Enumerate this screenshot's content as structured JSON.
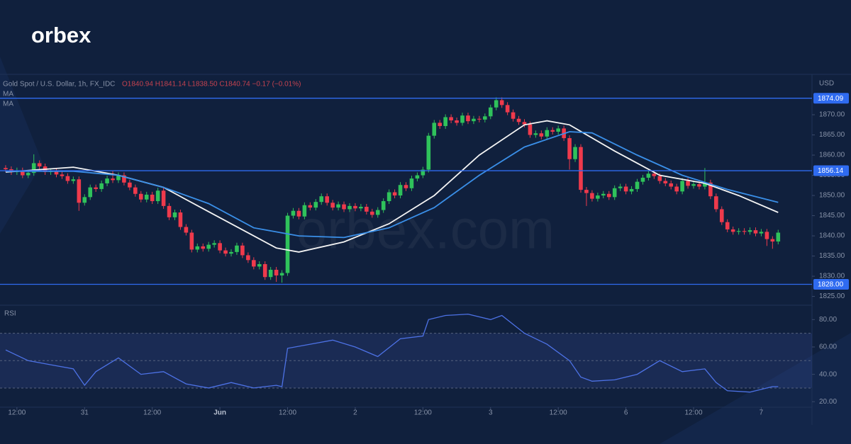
{
  "logo": "orbex",
  "watermark": "orbex.com",
  "chart_data": [
    {
      "type": "candlestick",
      "title": "Gold Spot / U.S. Dollar, 1h, FX_IDC",
      "ohlc_label": "O1840.94 H1841.14 L1838.50 C1840.74 −0.17 (−0.01%)",
      "currency": "USD",
      "open": [
        1856.8,
        1856.5,
        1855.8,
        1856.2,
        1855.0,
        1855.6,
        1858.0,
        1857.2,
        1855.8,
        1856.0,
        1855.2,
        1854.8,
        1853.6,
        1854.0,
        1848.2,
        1849.6,
        1852.0,
        1851.6,
        1853.0,
        1854.2,
        1853.8,
        1855.0,
        1853.2,
        1852.0,
        1850.4,
        1849.0,
        1850.2,
        1848.6,
        1851.2,
        1847.4,
        1844.6,
        1845.8,
        1842.2,
        1840.8,
        1836.6,
        1837.4,
        1836.8,
        1837.8,
        1838.2,
        1836.4,
        1835.6,
        1836.0,
        1837.6,
        1835.2,
        1834.0,
        1832.4,
        1833.0,
        1829.8,
        1831.6,
        1830.2,
        1830.8,
        1845.0,
        1846.2,
        1844.8,
        1847.6,
        1847.0,
        1848.4,
        1849.8,
        1848.2,
        1847.0,
        1847.8,
        1846.6,
        1847.4,
        1846.8,
        1847.2,
        1846.0,
        1845.2,
        1846.4,
        1848.6,
        1850.8,
        1850.0,
        1852.6,
        1851.8,
        1854.2,
        1855.0,
        1856.4,
        1864.8,
        1868.0,
        1867.2,
        1869.4,
        1868.6,
        1868.0,
        1869.8,
        1868.4,
        1869.0,
        1868.8,
        1869.6,
        1871.8,
        1873.6,
        1872.4,
        1870.6,
        1869.0,
        1868.2,
        1867.6,
        1865.0,
        1865.4,
        1864.6,
        1866.2,
        1865.8,
        1866.6,
        1864.2,
        1859.0,
        1862.0,
        1851.4,
        1850.6,
        1849.2,
        1850.0,
        1850.4,
        1849.6,
        1851.8,
        1852.2,
        1851.0,
        1851.6,
        1853.4,
        1854.4,
        1855.4,
        1854.8,
        1853.6,
        1853.0,
        1852.2,
        1851.0,
        1853.6,
        1852.4,
        1852.8,
        1852.2,
        1853.2,
        1849.8,
        1846.6,
        1843.4,
        1841.6,
        1841.0,
        1841.2,
        1841.0,
        1841.4,
        1840.6,
        1841.0,
        1839.2,
        1838.6
      ],
      "high": [
        1857.5,
        1857.2,
        1856.9,
        1856.9,
        1856.3,
        1860.2,
        1858.7,
        1857.9,
        1856.7,
        1856.7,
        1855.9,
        1855.5,
        1854.7,
        1854.7,
        1850.3,
        1852.7,
        1852.7,
        1853.7,
        1854.9,
        1856.0,
        1855.7,
        1855.7,
        1853.9,
        1852.7,
        1851.1,
        1850.9,
        1850.9,
        1851.9,
        1851.9,
        1848.1,
        1846.5,
        1846.5,
        1842.9,
        1841.5,
        1838.1,
        1838.1,
        1838.5,
        1838.9,
        1838.9,
        1837.1,
        1836.7,
        1838.3,
        1838.3,
        1835.9,
        1834.7,
        1833.7,
        1833.7,
        1832.3,
        1832.3,
        1831.5,
        1845.7,
        1846.9,
        1846.9,
        1848.3,
        1848.3,
        1849.1,
        1850.5,
        1850.5,
        1848.9,
        1848.5,
        1848.5,
        1848.1,
        1848.1,
        1847.9,
        1847.9,
        1846.7,
        1847.1,
        1849.3,
        1851.5,
        1851.5,
        1853.3,
        1853.3,
        1854.9,
        1855.7,
        1857.1,
        1865.5,
        1868.7,
        1868.7,
        1870.1,
        1870.1,
        1869.3,
        1870.5,
        1870.5,
        1869.7,
        1869.7,
        1870.3,
        1872.5,
        1874.3,
        1874.3,
        1873.1,
        1871.3,
        1869.7,
        1868.9,
        1868.3,
        1866.1,
        1866.1,
        1866.9,
        1866.9,
        1867.3,
        1867.3,
        1864.9,
        1862.7,
        1862.7,
        1852.1,
        1851.3,
        1850.7,
        1851.1,
        1851.1,
        1852.5,
        1852.9,
        1852.9,
        1852.3,
        1854.1,
        1855.1,
        1856.1,
        1856.1,
        1855.5,
        1854.3,
        1853.7,
        1852.9,
        1854.3,
        1854.3,
        1853.5,
        1853.5,
        1856.8,
        1853.9,
        1850.5,
        1847.3,
        1844.1,
        1842.3,
        1841.9,
        1841.9,
        1842.1,
        1842.1,
        1841.7,
        1841.7,
        1839.9,
        1841.5
      ],
      "low": [
        1855.8,
        1855.1,
        1855.1,
        1854.3,
        1854.3,
        1854.9,
        1856.5,
        1855.1,
        1855.1,
        1854.5,
        1854.1,
        1852.9,
        1852.9,
        1846.2,
        1847.5,
        1848.9,
        1850.9,
        1850.9,
        1852.3,
        1853.1,
        1853.1,
        1852.5,
        1851.3,
        1849.7,
        1848.3,
        1848.3,
        1847.9,
        1847.9,
        1846.7,
        1843.9,
        1843.9,
        1841.5,
        1840.1,
        1835.9,
        1835.9,
        1836.1,
        1836.1,
        1837.1,
        1835.7,
        1834.9,
        1834.9,
        1835.3,
        1834.5,
        1833.3,
        1831.7,
        1831.7,
        1829.1,
        1829.1,
        1828.6,
        1828.4,
        1830.1,
        1844.3,
        1844.1,
        1844.1,
        1846.3,
        1846.3,
        1847.7,
        1847.5,
        1846.3,
        1846.3,
        1845.9,
        1845.9,
        1846.1,
        1846.1,
        1845.3,
        1844.5,
        1844.5,
        1845.7,
        1847.9,
        1849.3,
        1849.3,
        1851.1,
        1851.1,
        1853.5,
        1854.3,
        1855.7,
        1864.1,
        1866.5,
        1866.5,
        1867.9,
        1867.3,
        1867.3,
        1867.7,
        1867.7,
        1868.1,
        1868.1,
        1868.9,
        1871.1,
        1871.7,
        1869.9,
        1868.3,
        1867.5,
        1866.9,
        1864.3,
        1864.3,
        1863.9,
        1863.9,
        1865.1,
        1865.1,
        1863.5,
        1856.4,
        1858.3,
        1850.7,
        1847.4,
        1848.5,
        1848.5,
        1849.3,
        1848.9,
        1848.9,
        1851.1,
        1850.3,
        1850.3,
        1850.9,
        1852.7,
        1853.7,
        1854.1,
        1852.9,
        1852.3,
        1851.5,
        1850.3,
        1850.3,
        1851.7,
        1851.7,
        1851.5,
        1851.5,
        1849.1,
        1845.9,
        1842.7,
        1840.9,
        1840.3,
        1840.3,
        1840.3,
        1840.3,
        1839.9,
        1839.9,
        1837.5,
        1836.8,
        1837.9
      ],
      "close": [
        1856.5,
        1855.8,
        1856.2,
        1855.0,
        1855.6,
        1858.0,
        1857.2,
        1855.8,
        1856.0,
        1855.2,
        1854.8,
        1853.6,
        1854.0,
        1848.2,
        1849.6,
        1852.0,
        1851.6,
        1853.0,
        1854.2,
        1853.8,
        1855.0,
        1853.2,
        1852.0,
        1850.4,
        1849.0,
        1850.2,
        1848.6,
        1851.2,
        1847.4,
        1844.6,
        1845.8,
        1842.2,
        1840.8,
        1836.6,
        1837.4,
        1836.8,
        1837.8,
        1838.2,
        1836.4,
        1835.6,
        1836.0,
        1837.6,
        1835.2,
        1834.0,
        1832.4,
        1833.0,
        1829.8,
        1831.6,
        1830.2,
        1830.8,
        1845.0,
        1846.2,
        1844.8,
        1847.6,
        1847.0,
        1848.4,
        1849.8,
        1848.2,
        1847.0,
        1847.8,
        1846.6,
        1847.4,
        1846.8,
        1847.2,
        1846.0,
        1845.2,
        1846.4,
        1848.6,
        1850.8,
        1850.0,
        1852.6,
        1851.8,
        1854.2,
        1855.0,
        1856.4,
        1864.8,
        1868.0,
        1867.2,
        1869.4,
        1868.6,
        1868.0,
        1869.8,
        1868.4,
        1869.0,
        1868.8,
        1869.6,
        1871.8,
        1873.6,
        1872.4,
        1870.6,
        1869.0,
        1868.2,
        1867.6,
        1865.0,
        1865.4,
        1864.6,
        1866.2,
        1865.8,
        1866.6,
        1864.2,
        1859.0,
        1862.0,
        1851.4,
        1850.6,
        1849.2,
        1850.0,
        1850.4,
        1849.6,
        1851.8,
        1852.2,
        1851.0,
        1851.6,
        1853.4,
        1854.4,
        1855.4,
        1854.8,
        1853.6,
        1853.0,
        1852.2,
        1851.0,
        1853.6,
        1852.4,
        1852.8,
        1852.2,
        1853.2,
        1849.8,
        1846.6,
        1843.4,
        1841.6,
        1841.0,
        1841.2,
        1841.0,
        1841.4,
        1840.6,
        1841.0,
        1839.2,
        1838.6,
        1840.8
      ],
      "up_color": "#2fc25b",
      "down_color": "#ef3a4c",
      "series": [
        {
          "name": "MA",
          "color": "#f4f4f4",
          "x": [
            0,
            12,
            20,
            28,
            36,
            44,
            48,
            52,
            60,
            68,
            76,
            84,
            92,
            96,
            100,
            108,
            116,
            124,
            130,
            137
          ],
          "values": [
            1855.8,
            1857,
            1855,
            1852,
            1846,
            1840,
            1837,
            1836,
            1838.5,
            1843,
            1850,
            1860,
            1867.5,
            1868.5,
            1867.5,
            1861,
            1855,
            1853,
            1850,
            1845.8
          ]
        },
        {
          "name": "MA",
          "color": "#3a8fe8",
          "x": [
            0,
            12,
            20,
            28,
            36,
            44,
            52,
            60,
            68,
            76,
            84,
            92,
            100,
            104,
            112,
            120,
            128,
            137
          ],
          "values": [
            1856,
            1856,
            1855,
            1852,
            1848,
            1842,
            1840,
            1839.6,
            1842,
            1847,
            1855,
            1862,
            1865.8,
            1865.5,
            1860,
            1855,
            1851.5,
            1848.3
          ]
        }
      ],
      "levels": [
        1874.09,
        1856.14,
        {
          "value": 1828,
          "label": "1828.00"
        }
      ],
      "level_color": "#2f6bf0",
      "xlim": [
        -1,
        143
      ],
      "ylim": [
        1823,
        1880
      ],
      "yticks": [
        {
          "value": 1825,
          "label": "1825.00"
        },
        {
          "value": 1830,
          "label": "1830.00"
        },
        {
          "value": 1835,
          "label": "1835.00"
        },
        {
          "value": 1840,
          "label": "1840.00"
        },
        {
          "value": 1845,
          "label": "1845.00"
        },
        {
          "value": 1850,
          "label": "1850.00"
        },
        {
          "value": 1855,
          "label": "1855.00"
        },
        {
          "value": 1860,
          "label": "1860.00"
        },
        {
          "value": 1865,
          "label": "1865.00"
        },
        {
          "value": 1870,
          "label": "1870.00"
        }
      ]
    },
    {
      "type": "line",
      "title": "RSI",
      "color": "#4d72e6",
      "x": [
        0,
        4,
        8,
        12,
        14,
        16,
        20,
        24,
        28,
        32,
        36,
        40,
        44,
        48,
        49,
        50,
        54,
        58,
        62,
        66,
        70,
        74,
        75,
        78,
        82,
        86,
        88,
        92,
        96,
        100,
        102,
        104,
        108,
        112,
        116,
        120,
        124,
        126,
        128,
        132,
        136,
        137
      ],
      "values": [
        57.8,
        50,
        47,
        44,
        32,
        42,
        52,
        40,
        42,
        33,
        30,
        34,
        30,
        32,
        31,
        59,
        62,
        65,
        60,
        53,
        66,
        68,
        80,
        83,
        84,
        80,
        83,
        70,
        62,
        50,
        38,
        35,
        36,
        40,
        50,
        42,
        44,
        34,
        28,
        27,
        31,
        31
      ],
      "band": [
        30,
        70
      ],
      "midline": 50,
      "xlim": [
        -1,
        143
      ],
      "ylim": [
        16,
        90
      ],
      "yticks": [
        {
          "value": 20,
          "label": "20.00"
        },
        {
          "value": 40,
          "label": "40.00"
        },
        {
          "value": 60,
          "label": "60.00"
        },
        {
          "value": 80,
          "label": "80.00"
        }
      ],
      "xticks": [
        {
          "value": 2,
          "label": "12:00"
        },
        {
          "value": 14,
          "label": "31"
        },
        {
          "value": 26,
          "label": "12:00"
        },
        {
          "value": 38,
          "label": "Jun"
        },
        {
          "value": 50,
          "label": "12:00"
        },
        {
          "value": 62,
          "label": "2"
        },
        {
          "value": 74,
          "label": "12:00"
        },
        {
          "value": 86,
          "label": "3"
        },
        {
          "value": 98,
          "label": "12:00"
        },
        {
          "value": 110,
          "label": "6"
        },
        {
          "value": 122,
          "label": "12:00"
        },
        {
          "value": 134,
          "label": "7"
        }
      ]
    }
  ]
}
